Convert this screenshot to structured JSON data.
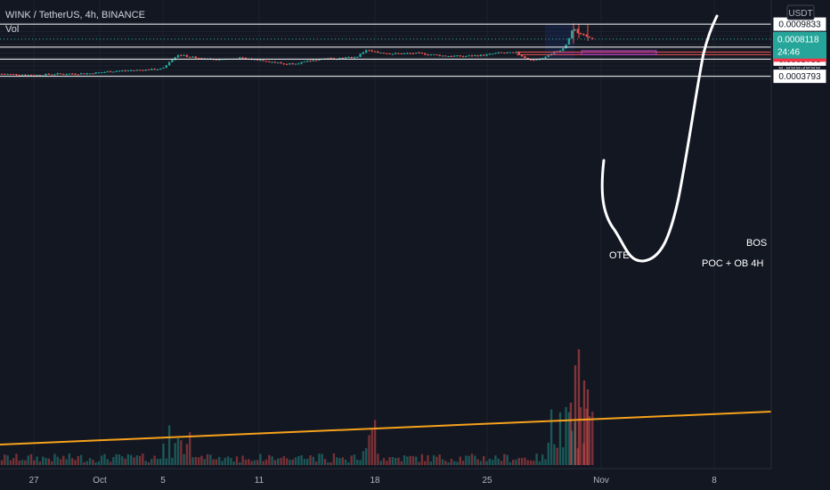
{
  "header": {
    "symbol_line": "WINK / TetherUS, 4h, BINANCE",
    "indicator": "Vol"
  },
  "chart_data": {
    "type": "candlestick",
    "symbol": "WINK / TetherUS",
    "interval": "4h",
    "exchange": "BINANCE",
    "currency": "USDT",
    "y_axis": {
      "scale": "linear",
      "range": [
        0.00033,
        0.00102
      ],
      "ticks": [
        "0.0003500",
        "0.0004000",
        "0.0004500",
        "0.0005000",
        "0.0005500",
        "0.0006000",
        "0.0006500",
        "0.0007000",
        "0.0007500",
        "0.0008000",
        "0.0008500",
        "0.0009000",
        "0.0009500",
        "0.0010000"
      ]
    },
    "x_axis": {
      "ticks": [
        "27",
        "Oct",
        "5",
        "11",
        "18",
        "25",
        "Nov",
        "8"
      ]
    },
    "candles_sample": [
      {
        "t": "Sep 27",
        "close": 0.000409
      },
      {
        "t": "Oct 1",
        "close": 0.000414
      },
      {
        "t": "Oct 5",
        "close": 0.000455
      },
      {
        "t": "Oct 6",
        "close": 0.00056
      },
      {
        "t": "Oct 7",
        "close": 0.00063
      },
      {
        "t": "Oct 9",
        "close": 0.000585
      },
      {
        "t": "Oct 13",
        "close": 0.00051
      },
      {
        "t": "Oct 16",
        "close": 0.0006
      },
      {
        "t": "Oct 17",
        "close": 0.0007
      },
      {
        "t": "Oct 18",
        "close": 0.00065
      },
      {
        "t": "Oct 21",
        "close": 0.000618
      },
      {
        "t": "Oct 24",
        "close": 0.000648
      },
      {
        "t": "Oct 26",
        "close": 0.00058
      },
      {
        "t": "Oct 28",
        "close": 0.00068
      },
      {
        "t": "Oct 29",
        "close": 0.00096
      },
      {
        "t": "Oct 30",
        "close": 0.000812
      }
    ],
    "levels": [
      {
        "value": 0.0009833,
        "label": "0.0009833",
        "style": "white"
      },
      {
        "value": 0.0007168,
        "label": "0.0007168",
        "style": "white"
      },
      {
        "value": 0.0005783,
        "label": "0.0005783",
        "style": "white"
      },
      {
        "value": 0.0003793,
        "label": "0.0003793",
        "style": "white"
      },
      {
        "value": 0.0006601,
        "label": "0.0006601",
        "style": "red"
      },
      {
        "value": 0.0006298,
        "label": "0.0006298",
        "style": "red"
      }
    ],
    "current_price": {
      "value": 0.0008118,
      "label": "0.0008118",
      "countdown": "24:46"
    },
    "annotations": {
      "bos": "BOS",
      "ote": "OTE",
      "poc": "POC + OB 4H"
    },
    "colors": {
      "up": "#26a69a",
      "down": "#ef5350",
      "trendline": "#f7a21b",
      "zone": "#9c27b0",
      "background": "#131722"
    }
  }
}
